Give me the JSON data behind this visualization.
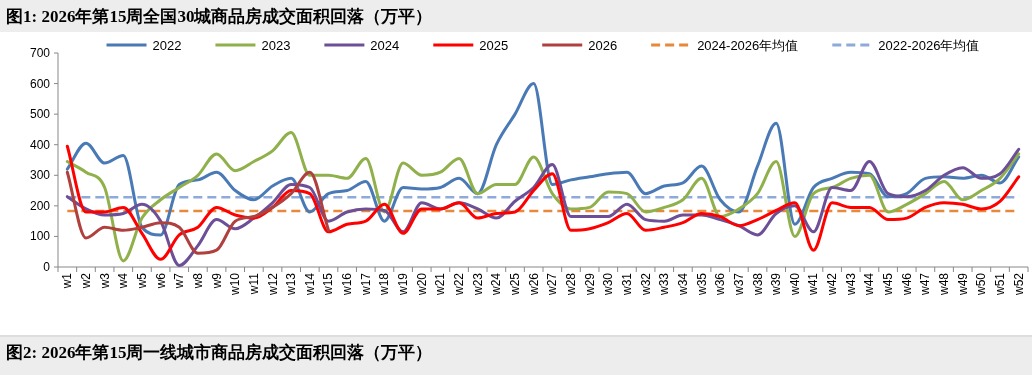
{
  "chart_data": {
    "type": "line",
    "title": "图1:  2026年第15周全国30城商品房成交面积回落（万平）",
    "annotations": [
      "图2:  2026年第15周一线城市商品房成交面积回落（万平）"
    ],
    "categories": [
      "w1",
      "w2",
      "w3",
      "w4",
      "w5",
      "w6",
      "w7",
      "w8",
      "w9",
      "w10",
      "w11",
      "w12",
      "w13",
      "w14",
      "w15",
      "w16",
      "w17",
      "w18",
      "w19",
      "w20",
      "w21",
      "w22",
      "w23",
      "w24",
      "w25",
      "w26",
      "w27",
      "w28",
      "w29",
      "w30",
      "w31",
      "w32",
      "w33",
      "w34",
      "w35",
      "w36",
      "w37",
      "w38",
      "w39",
      "w40",
      "w41",
      "w42",
      "w43",
      "w44",
      "w45",
      "w46",
      "w47",
      "w48",
      "w49",
      "w50",
      "w51",
      "w52"
    ],
    "series": [
      {
        "name": "2022",
        "color": "#4a7ab5",
        "values": [
          320,
          405,
          340,
          365,
          130,
          105,
          270,
          285,
          310,
          250,
          220,
          265,
          290,
          180,
          240,
          250,
          280,
          150,
          260,
          255,
          260,
          290,
          240,
          400,
          500,
          600,
          270,
          285,
          295,
          305,
          310,
          240,
          265,
          275,
          330,
          220,
          180,
          330,
          470,
          140,
          260,
          290,
          310,
          305,
          230,
          240,
          290,
          295,
          290,
          300,
          275,
          360
        ]
      },
      {
        "name": "2023",
        "color": "#8fb04a",
        "values": [
          345,
          310,
          260,
          20,
          160,
          220,
          260,
          300,
          370,
          315,
          345,
          380,
          440,
          300,
          300,
          290,
          355,
          180,
          340,
          300,
          310,
          355,
          240,
          270,
          270,
          360,
          240,
          190,
          195,
          245,
          240,
          180,
          195,
          220,
          290,
          165,
          190,
          240,
          345,
          100,
          240,
          260,
          290,
          300,
          180,
          205,
          240,
          280,
          220,
          250,
          290,
          370
        ]
      },
      {
        "name": "2024",
        "color": "#6c4f96",
        "values": [
          230,
          190,
          170,
          175,
          205,
          150,
          5,
          70,
          155,
          125,
          160,
          210,
          270,
          260,
          150,
          180,
          190,
          185,
          115,
          210,
          190,
          210,
          190,
          160,
          215,
          260,
          335,
          165,
          165,
          165,
          205,
          155,
          150,
          170,
          170,
          155,
          135,
          105,
          175,
          200,
          115,
          260,
          250,
          345,
          240,
          230,
          250,
          300,
          325,
          290,
          305,
          385
        ]
      },
      {
        "name": "2025",
        "color": "#ff0000",
        "values": [
          395,
          180,
          180,
          195,
          110,
          25,
          105,
          130,
          195,
          170,
          160,
          195,
          250,
          240,
          115,
          140,
          150,
          205,
          110,
          190,
          190,
          210,
          160,
          175,
          180,
          250,
          305,
          120,
          125,
          145,
          175,
          120,
          130,
          145,
          175,
          165,
          135,
          155,
          185,
          210,
          55,
          210,
          195,
          195,
          155,
          160,
          195,
          210,
          205,
          190,
          215,
          295
        ]
      },
      {
        "name": "2026",
        "color": "#b0403e",
        "values": [
          310,
          95,
          130,
          120,
          130,
          145,
          130,
          45,
          55,
          150,
          165,
          195,
          240,
          310,
          120,
          null,
          null,
          null,
          null,
          null,
          null,
          null,
          null,
          null,
          null,
          null,
          null,
          null,
          null,
          null,
          null,
          null,
          null,
          null,
          null,
          null,
          null,
          null,
          null,
          null,
          null,
          null,
          null,
          null,
          null,
          null,
          null,
          null,
          null,
          null,
          null,
          null
        ]
      }
    ],
    "ref_lines": [
      {
        "axis": "y",
        "value": 183,
        "label": "2024-2026年均值",
        "color": "#e8883a",
        "line_style": "dashed"
      },
      {
        "axis": "y",
        "value": 228,
        "label": "2022-2026年均值",
        "color": "#8eaadb",
        "line_style": "dashed"
      }
    ],
    "ylim": [
      0,
      700
    ],
    "yticks": [
      0,
      100,
      200,
      300,
      400,
      500,
      600,
      700
    ],
    "legend": "top",
    "grid": false
  }
}
